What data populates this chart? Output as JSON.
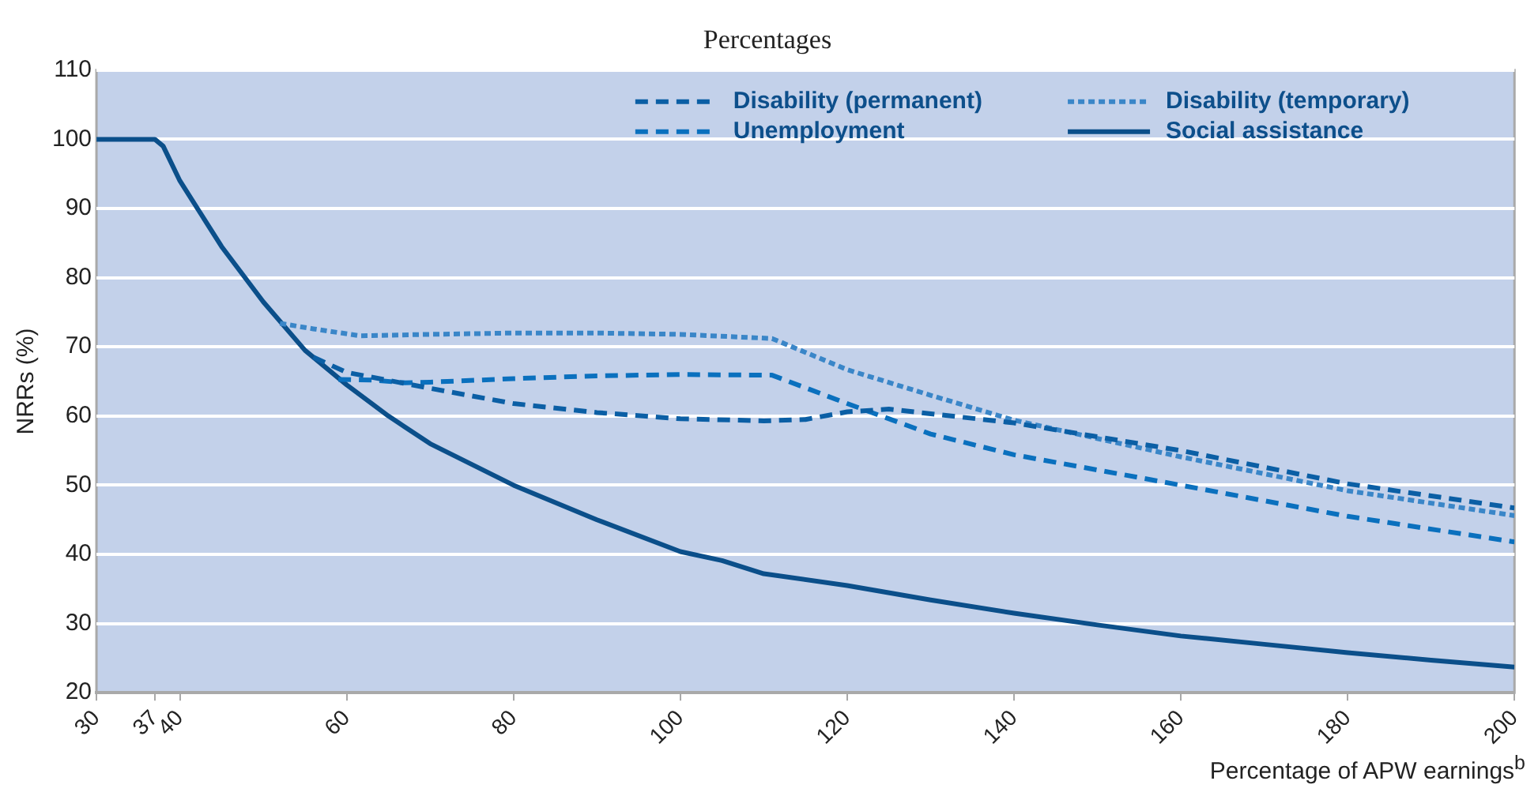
{
  "chart_data": {
    "type": "line",
    "title": "Percentages",
    "xlabel": "Percentage of APW earnings$^{b}$",
    "ylabel": "NRRs (%)",
    "xlim": [
      30,
      200
    ],
    "xticks": [
      30,
      37,
      40,
      60,
      80,
      100,
      120,
      140,
      160,
      180,
      200
    ],
    "ylim": [
      20,
      110
    ],
    "yticks": [
      20,
      30,
      40,
      50,
      60,
      70,
      80,
      90,
      100,
      110
    ],
    "grid": "y",
    "legend": "top right",
    "marker": "none",
    "series": [
      {
        "name": "Disability (permanent)",
        "color": "#0b5fa5",
        "line_style": "dashed",
        "x": [
          56,
          60,
          70,
          80,
          90,
          100,
          110,
          115,
          120,
          125,
          140,
          160,
          180,
          200
        ],
        "values": [
          68.5,
          66.3,
          64,
          61.8,
          60.5,
          59.6,
          59.3,
          59.5,
          60.6,
          61,
          59,
          55,
          50.2,
          46.7
        ]
      },
      {
        "name": "Disability (temporary)",
        "color": "#3a86c8",
        "line_style": "dotted",
        "x": [
          52,
          56,
          61.6,
          70,
          80,
          90,
          100,
          111,
          120,
          130,
          140,
          160,
          180,
          200
        ],
        "values": [
          73.4,
          72.6,
          71.6,
          71.8,
          72,
          72,
          71.8,
          71.2,
          66.7,
          63,
          59.4,
          54.1,
          49.2,
          45.6
        ]
      },
      {
        "name": "Unemployment",
        "color": "#0a70be",
        "line_style": "dashed",
        "x": [
          59,
          63,
          67,
          70,
          80,
          90,
          100,
          111,
          120,
          130,
          140,
          160,
          180,
          200
        ],
        "values": [
          65.3,
          65.2,
          64.8,
          64.9,
          65.4,
          65.8,
          66,
          65.9,
          61.8,
          57.4,
          54.4,
          50,
          45.5,
          41.8
        ]
      },
      {
        "name": "Social assistance",
        "color": "#0b4f8a",
        "line_style": "solid",
        "x": [
          30,
          37,
          38,
          40,
          45,
          50,
          55,
          60,
          65,
          70,
          80,
          90,
          100,
          105,
          110,
          120,
          130,
          140,
          150,
          160,
          170,
          180,
          190,
          200
        ],
        "values": [
          100,
          100,
          99,
          94,
          84.5,
          76.5,
          69.5,
          64.5,
          60,
          56,
          50,
          45,
          40.4,
          39.1,
          37.2,
          35.5,
          33.4,
          31.5,
          29.8,
          28.2,
          27,
          25.8,
          24.7,
          23.7
        ]
      }
    ]
  }
}
